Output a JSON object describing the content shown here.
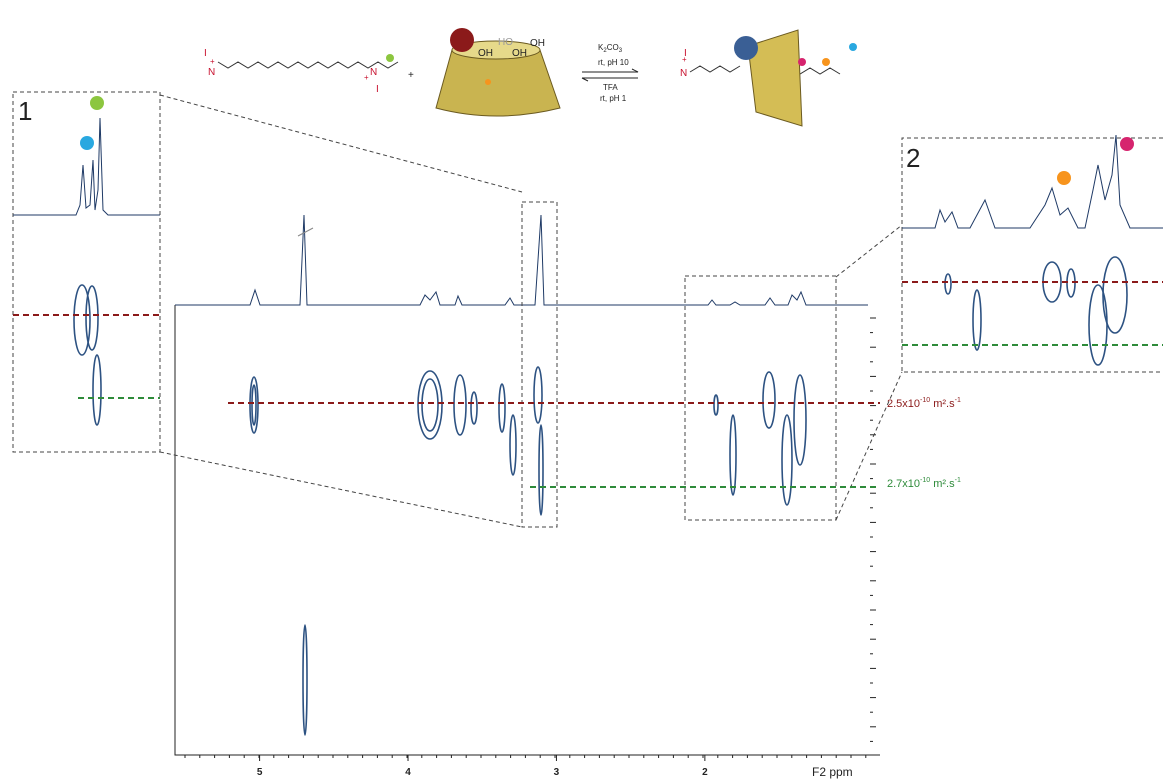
{
  "scheme": {
    "plus": "+",
    "hydroxyls": [
      "OH",
      "HO",
      "OH",
      "OH"
    ],
    "forward": {
      "reagent": [
        "K",
        "2",
        "CO",
        "3"
      ],
      "conditions": "rt, pH 10"
    },
    "backward": {
      "reagent": "TFA",
      "conditions": "rt, pH 1"
    },
    "charges": [
      "+",
      "+",
      "+"
    ],
    "iodides": [
      "I",
      "I",
      "I"
    ],
    "nitrogens": [
      "N",
      "N",
      "N"
    ]
  },
  "insets": {
    "left": {
      "label": "1"
    },
    "right": {
      "label": "2"
    }
  },
  "spectrum": {
    "x_axis_label": "F2 ppm",
    "x_range": [
      5.57,
      0.82
    ],
    "x_ticks": [
      5,
      4,
      3,
      2
    ]
  },
  "diffusion": [
    {
      "mantissa": "2.5x10",
      "exponent": "-10",
      "unit": " m².s",
      "unit_exponent": "-1",
      "color": "#8b1a1a"
    },
    {
      "mantissa": "2.7x10",
      "exponent": "-10",
      "unit": " m².s",
      "unit_exponent": "-1",
      "color": "#2e8b3a"
    }
  ]
}
